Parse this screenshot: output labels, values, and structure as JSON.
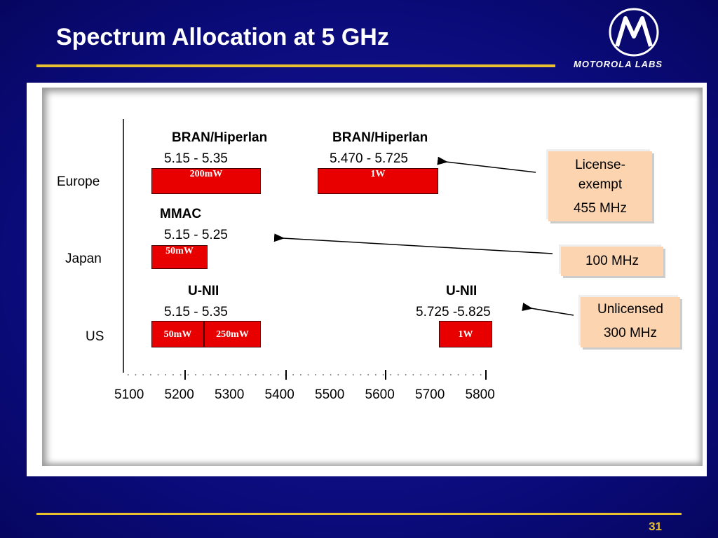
{
  "header": {
    "title": "Spectrum Allocation at 5 GHz",
    "logo": "MOTOROLA LABS"
  },
  "regions": [
    {
      "name": "Europe",
      "bands": [
        {
          "name": "BRAN/Hiperlan",
          "range": "5.15 - 5.35",
          "power": [
            "200mW"
          ]
        },
        {
          "name": "BRAN/Hiperlan",
          "range": "5.470 - 5.725",
          "power": [
            "1W"
          ]
        }
      ]
    },
    {
      "name": "Japan",
      "bands": [
        {
          "name": "MMAC",
          "range": "5.15 - 5.25",
          "power": [
            "50mW"
          ]
        }
      ]
    },
    {
      "name": "US",
      "bands": [
        {
          "name": "U-NII",
          "range": "5.15 - 5.35",
          "power": [
            "50mW",
            "250mW"
          ]
        },
        {
          "name": "U-NII",
          "range": "5.725 -5.825",
          "power": [
            "1W"
          ]
        }
      ]
    }
  ],
  "axis": {
    "ticks": [
      5100,
      5200,
      5300,
      5400,
      5500,
      5600,
      5700,
      5800
    ]
  },
  "callouts": [
    {
      "lines": [
        "License-",
        "exempt",
        "455 MHz"
      ]
    },
    {
      "lines": [
        "100 MHz"
      ]
    },
    {
      "lines": [
        "Unlicensed",
        "300 MHz"
      ]
    }
  ],
  "page_number": "31"
}
